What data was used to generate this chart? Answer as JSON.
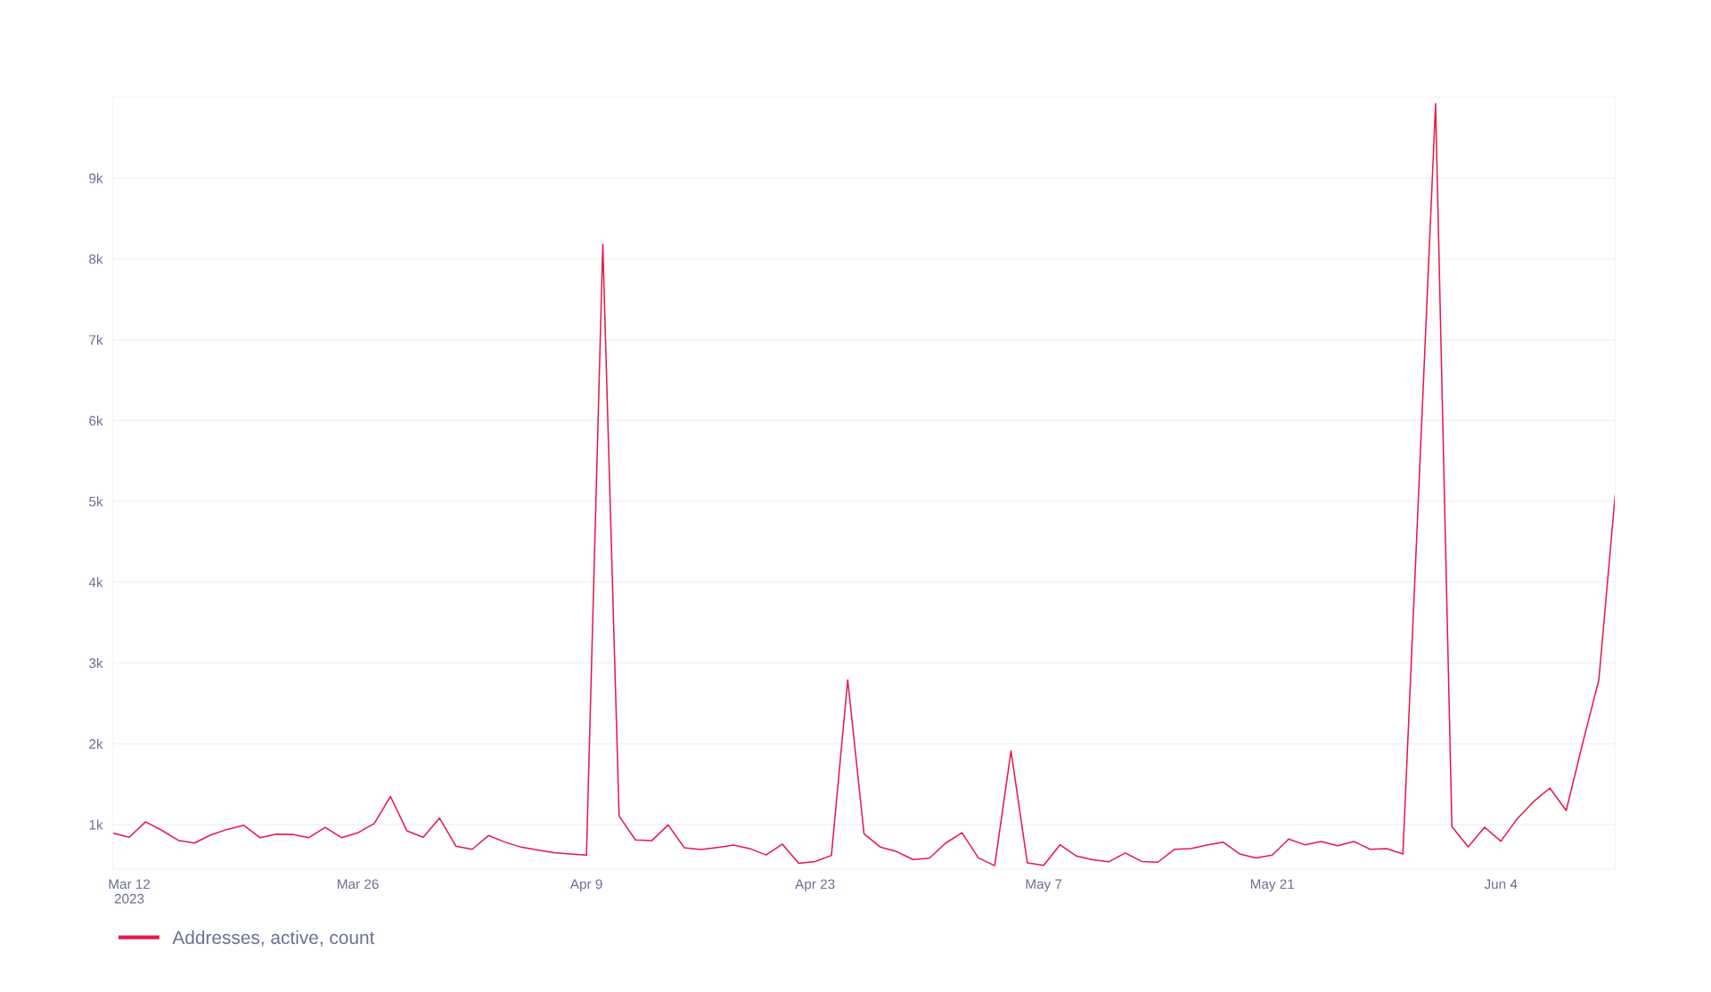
{
  "chart_data": {
    "type": "line",
    "x": [
      "2023-03-11",
      "2023-03-12",
      "2023-03-13",
      "2023-03-14",
      "2023-03-15",
      "2023-03-16",
      "2023-03-17",
      "2023-03-18",
      "2023-03-19",
      "2023-03-20",
      "2023-03-21",
      "2023-03-22",
      "2023-03-23",
      "2023-03-24",
      "2023-03-25",
      "2023-03-26",
      "2023-03-27",
      "2023-03-28",
      "2023-03-29",
      "2023-03-30",
      "2023-03-31",
      "2023-04-01",
      "2023-04-02",
      "2023-04-03",
      "2023-04-04",
      "2023-04-05",
      "2023-04-06",
      "2023-04-07",
      "2023-04-08",
      "2023-04-09",
      "2023-04-10",
      "2023-04-11",
      "2023-04-12",
      "2023-04-13",
      "2023-04-14",
      "2023-04-15",
      "2023-04-16",
      "2023-04-17",
      "2023-04-18",
      "2023-04-19",
      "2023-04-20",
      "2023-04-21",
      "2023-04-22",
      "2023-04-23",
      "2023-04-24",
      "2023-04-25",
      "2023-04-26",
      "2023-04-27",
      "2023-04-28",
      "2023-04-29",
      "2023-04-30",
      "2023-05-01",
      "2023-05-02",
      "2023-05-03",
      "2023-05-04",
      "2023-05-05",
      "2023-05-06",
      "2023-05-07",
      "2023-05-08",
      "2023-05-09",
      "2023-05-10",
      "2023-05-11",
      "2023-05-12",
      "2023-05-13",
      "2023-05-14",
      "2023-05-15",
      "2023-05-16",
      "2023-05-17",
      "2023-05-18",
      "2023-05-19",
      "2023-05-20",
      "2023-05-21",
      "2023-05-22",
      "2023-05-23",
      "2023-05-24",
      "2023-05-25",
      "2023-05-26",
      "2023-05-27",
      "2023-05-28",
      "2023-05-29",
      "2023-05-31",
      "2023-06-01",
      "2023-06-02",
      "2023-06-03",
      "2023-06-04",
      "2023-06-05",
      "2023-06-06",
      "2023-06-07",
      "2023-06-08",
      "2023-06-09",
      "2023-06-10",
      "2023-06-11"
    ],
    "series": [
      {
        "name": "Addresses, active, count",
        "color": "#e8174a",
        "values": [
          894,
          843,
          1034,
          928,
          805,
          771,
          873,
          940,
          992,
          838,
          881,
          877,
          838,
          966,
          838,
          898,
          1012,
          1347,
          923,
          843,
          1080,
          733,
          694,
          864,
          783,
          720,
          686,
          652,
          636,
          621,
          8180,
          1106,
          809,
          800,
          995,
          712,
          690,
          716,
          746,
          703,
          623,
          758,
          521,
          542,
          618,
          2790,
          885,
          720,
          665,
          567,
          584,
          771,
          898,
          588,
          491,
          1911,
          525,
          495,
          749,
          610,
          565,
          540,
          649,
          543,
          534,
          693,
          702,
          746,
          781,
          636,
          587,
          622,
          821,
          750,
          790,
          737,
          790,
          693,
          702,
          636,
          9920,
          975,
          724,
          966,
          794,
          1072,
          1284,
          1451,
          1173,
          2000,
          2790,
          5080
        ]
      }
    ],
    "xlim": [
      "2023-03-11",
      "2023-06-11"
    ],
    "xticks": [
      {
        "value": "2023-03-12",
        "label": "Mar 12\n2023"
      },
      {
        "value": "2023-03-26",
        "label": "Mar 26"
      },
      {
        "value": "2023-04-09",
        "label": "Apr 9"
      },
      {
        "value": "2023-04-23",
        "label": "Apr 23"
      },
      {
        "value": "2023-05-07",
        "label": "May 7"
      },
      {
        "value": "2023-05-21",
        "label": "May 21"
      },
      {
        "value": "2023-06-04",
        "label": "Jun 4"
      }
    ],
    "ylim": [
      450,
      10000
    ],
    "yticks": [
      {
        "value": 1000,
        "label": "1k"
      },
      {
        "value": 2000,
        "label": "2k"
      },
      {
        "value": 3000,
        "label": "3k"
      },
      {
        "value": 4000,
        "label": "4k"
      },
      {
        "value": 5000,
        "label": "5k"
      },
      {
        "value": 6000,
        "label": "6k"
      },
      {
        "value": 7000,
        "label": "7k"
      },
      {
        "value": 8000,
        "label": "8k"
      },
      {
        "value": 9000,
        "label": "9k"
      }
    ],
    "grid": "y",
    "legend": "bottom left",
    "marker": "none",
    "line_style": "solid"
  }
}
